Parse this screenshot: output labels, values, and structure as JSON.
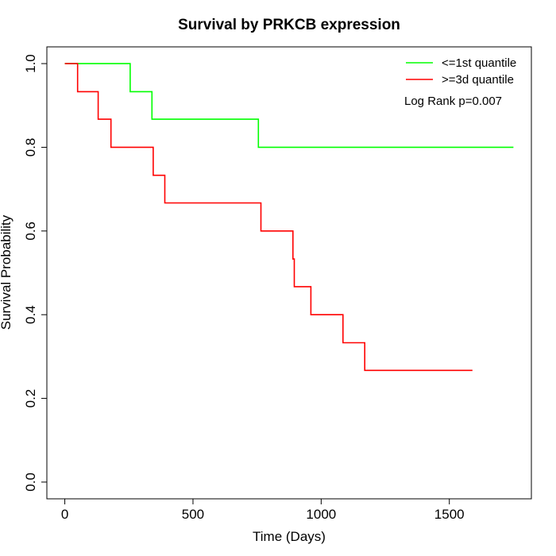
{
  "chart_data": {
    "type": "line",
    "step": true,
    "title": "Survival by PRKCB expression",
    "xlabel": "Time (Days)",
    "ylabel": "Survival Probability",
    "xlim": [
      -70,
      1820
    ],
    "ylim": [
      -0.04,
      1.04
    ],
    "x_ticks": [
      0,
      500,
      1000,
      1500
    ],
    "y_ticks": [
      0.0,
      0.2,
      0.4,
      0.6,
      0.8,
      1.0
    ],
    "x_tick_labels": [
      "0",
      "500",
      "1000",
      "1500"
    ],
    "y_tick_labels": [
      "0.0",
      "0.2",
      "0.4",
      "0.6",
      "0.8",
      "1.0"
    ],
    "grid": false,
    "legend_position": "top-right",
    "annotation": "Log Rank p=0.007",
    "series": [
      {
        "name": "<=1st quantile",
        "color": "#00ff00",
        "x": [
          0,
          255,
          255,
          340,
          340,
          755,
          755,
          1750
        ],
        "y": [
          1.0,
          1.0,
          0.933,
          0.933,
          0.867,
          0.867,
          0.8,
          0.8
        ]
      },
      {
        "name": ">=3d quantile",
        "color": "#ff0000",
        "x": [
          0,
          50,
          50,
          130,
          130,
          180,
          180,
          345,
          345,
          390,
          390,
          765,
          765,
          890,
          890,
          895,
          895,
          960,
          960,
          1085,
          1085,
          1170,
          1170,
          1590
        ],
        "y": [
          1.0,
          1.0,
          0.933,
          0.933,
          0.867,
          0.867,
          0.8,
          0.8,
          0.733,
          0.733,
          0.667,
          0.667,
          0.6,
          0.6,
          0.533,
          0.533,
          0.467,
          0.467,
          0.4,
          0.4,
          0.333,
          0.333,
          0.267,
          0.267
        ]
      }
    ]
  }
}
